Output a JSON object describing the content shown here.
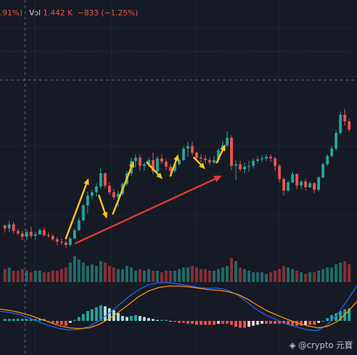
{
  "header": {
    "change_pct": ".91%)",
    "vol_label": "Vol",
    "vol_value": "1.442 K",
    "vol_change": "−833 (−1.25%)"
  },
  "watermark": "@crypto 元寶",
  "colors": {
    "up": "#26a69a",
    "down": "#ef5350",
    "arrow_yellow": "#f5c518",
    "arrow_red": "#e53935",
    "macd_line": "#2962ff",
    "signal_line": "#ff9800",
    "bg": "#161a25"
  },
  "chart_data": [
    {
      "type": "candlestick",
      "title": "",
      "ohlc": [
        [
          96,
          96,
          95.1,
          95.6
        ],
        [
          95.6,
          96.5,
          95.2,
          96.1
        ],
        [
          96.1,
          96.4,
          95,
          95.3
        ],
        [
          95.3,
          95.6,
          94.8,
          95
        ],
        [
          95,
          95.3,
          94.2,
          94.6
        ],
        [
          94.6,
          95.5,
          94.3,
          95.2
        ],
        [
          95.2,
          95.8,
          94.4,
          94.7
        ],
        [
          94.7,
          95.2,
          94.2,
          94.9
        ],
        [
          94.9,
          95.6,
          94.8,
          95.4
        ],
        [
          95.4,
          95.7,
          94.6,
          94.8
        ],
        [
          94.8,
          95.1,
          94.5,
          94.7
        ],
        [
          94.7,
          94.9,
          94.1,
          94.3
        ],
        [
          94.3,
          94.6,
          93.6,
          94
        ],
        [
          94,
          94.4,
          93.6,
          93.9
        ],
        [
          93.9,
          94.1,
          93.2,
          93.6
        ],
        [
          93.6,
          94.6,
          93.4,
          94.4
        ],
        [
          94.4,
          95.6,
          94.3,
          95.4
        ],
        [
          95.4,
          96.9,
          95.3,
          96.6
        ],
        [
          96.6,
          98.6,
          96.5,
          98.4
        ],
        [
          98.4,
          100.1,
          97.4,
          99.6
        ],
        [
          99.6,
          100.3,
          99.2,
          100
        ],
        [
          100,
          101.1,
          99.5,
          100.7
        ],
        [
          100.7,
          102.9,
          100.4,
          102.3
        ],
        [
          102.3,
          102.4,
          100.5,
          100.8
        ],
        [
          100.8,
          101.2,
          99.7,
          100
        ],
        [
          100,
          100.4,
          99.1,
          99.4
        ],
        [
          99.4,
          100.2,
          98.2,
          99.8
        ],
        [
          99.8,
          101.2,
          99.6,
          101
        ],
        [
          101,
          102.6,
          100.8,
          102.3
        ],
        [
          102.3,
          104.2,
          102,
          103.8
        ],
        [
          103.8,
          104.6,
          103,
          104.2
        ],
        [
          104.2,
          104.6,
          102.6,
          103.2
        ],
        [
          103.2,
          103.6,
          102.6,
          103.4
        ],
        [
          103.4,
          104.2,
          103.1,
          103.9
        ],
        [
          103.9,
          104.8,
          102.2,
          102.5
        ],
        [
          102.5,
          104.4,
          102.3,
          104.1
        ],
        [
          104.1,
          104.6,
          103.4,
          103.7
        ],
        [
          103.7,
          104,
          102.7,
          103.1
        ],
        [
          103.1,
          103.4,
          102.3,
          102.6
        ],
        [
          102.6,
          103.6,
          102.4,
          103.4
        ],
        [
          103.4,
          104.1,
          103.2,
          103.9
        ],
        [
          103.9,
          105.6,
          103.8,
          105.3
        ],
        [
          105.3,
          106.1,
          104.3,
          105.6
        ],
        [
          105.6,
          106.1,
          104.5,
          104.8
        ],
        [
          104.8,
          104.9,
          103.8,
          104.2
        ],
        [
          104.2,
          104.6,
          103.6,
          104.1
        ],
        [
          104.1,
          104.5,
          103.5,
          103.9
        ],
        [
          103.9,
          104.2,
          103.3,
          103.6
        ],
        [
          103.6,
          104.4,
          103.4,
          103.9
        ],
        [
          103.9,
          105.3,
          103.6,
          105.1
        ],
        [
          105.1,
          106.2,
          104.9,
          105.7
        ],
        [
          105.7,
          107.4,
          105.5,
          106.6
        ],
        [
          106.6,
          106.9,
          102.7,
          103.2
        ],
        [
          103.2,
          103.9,
          101.5,
          103.4
        ],
        [
          103.4,
          103.8,
          102.5,
          102.8
        ],
        [
          102.8,
          103.6,
          102.3,
          103.1
        ],
        [
          103.1,
          103.8,
          102.5,
          103.2
        ],
        [
          103.2,
          104.1,
          102.9,
          103.8
        ],
        [
          103.8,
          104.4,
          103.5,
          104
        ],
        [
          104,
          104.5,
          103.7,
          104.1
        ],
        [
          104.1,
          104.6,
          103.8,
          104.3
        ],
        [
          104.3,
          104.6,
          103.7,
          104.1
        ],
        [
          104.1,
          104.3,
          102.6,
          103.2
        ],
        [
          103.2,
          103.4,
          101.2,
          101.6
        ],
        [
          101.6,
          101.8,
          99.6,
          100.2
        ],
        [
          100.2,
          101.4,
          100,
          101.2
        ],
        [
          101.2,
          102.5,
          101.1,
          102.2
        ],
        [
          102.2,
          102.3,
          100.4,
          100.8
        ],
        [
          100.8,
          101.5,
          100.4,
          101.3
        ],
        [
          101.3,
          101.6,
          100.2,
          100.6
        ],
        [
          100.6,
          101.3,
          100.5,
          101.1
        ],
        [
          101.1,
          101.2,
          99.9,
          100.3
        ],
        [
          100.3,
          102,
          100.1,
          101.8
        ],
        [
          101.8,
          103.6,
          101.7,
          103.4
        ],
        [
          103.4,
          104.6,
          103.2,
          104.4
        ],
        [
          104.4,
          105.6,
          104.2,
          105.3
        ],
        [
          105.3,
          107.5,
          105,
          107.2
        ],
        [
          107.2,
          109.8,
          107,
          109.4
        ],
        [
          109.4,
          110.1,
          108.1,
          108.6
        ],
        [
          108.6,
          108.9,
          107.3,
          107.6
        ]
      ],
      "volume": [
        8,
        9,
        7,
        7,
        8,
        7,
        6,
        7,
        7,
        6,
        6,
        7,
        7,
        8,
        9,
        12,
        16,
        14,
        12,
        10,
        11,
        10,
        13,
        12,
        10,
        9,
        8,
        8,
        10,
        9,
        7,
        8,
        7,
        8,
        7,
        7,
        6,
        7,
        7,
        7,
        8,
        9,
        9,
        10,
        9,
        8,
        8,
        7,
        7,
        8,
        9,
        10,
        15,
        13,
        9,
        8,
        7,
        6,
        6,
        6,
        5,
        6,
        7,
        8,
        10,
        9,
        8,
        7,
        6,
        5,
        6,
        6,
        7,
        8,
        9,
        9,
        11,
        12,
        13,
        11
      ],
      "macd_histogram": [
        0.2,
        0.2,
        0.2,
        0.2,
        0.2,
        0.2,
        0.2,
        0.2,
        0.2,
        0.2,
        -0.1,
        -0.2,
        -0.3,
        -0.4,
        -0.5,
        -0.2,
        0.1,
        0.4,
        0.7,
        1,
        1.2,
        1.4,
        1.6,
        1.5,
        1.3,
        1.1,
        0.8,
        0.5,
        0.4,
        0.5,
        0.6,
        0.5,
        0.4,
        0.3,
        0.2,
        0.1,
        0.1,
        0.1,
        0,
        -0.1,
        -0.2,
        -0.2,
        -0.3,
        -0.3,
        -0.4,
        -0.4,
        -0.4,
        -0.4,
        -0.4,
        -0.3,
        -0.3,
        -0.3,
        -0.4,
        -0.6,
        -0.7,
        -0.7,
        -0.6,
        -0.5,
        -0.4,
        -0.3,
        -0.3,
        -0.3,
        -0.3,
        -0.3,
        -0.3,
        -0.4,
        -0.5,
        -0.5,
        -0.5,
        -0.4,
        -0.4,
        -0.4,
        -0.2,
        0,
        0.3,
        0.6,
        0.8,
        1,
        1.2,
        1.3
      ],
      "macd_line": [
        0.5,
        0.3,
        0,
        -0.5,
        -1.1,
        -1.6,
        -2,
        -2.2,
        -2.1,
        -1.7,
        -0.9,
        0.2,
        1.4,
        2.6,
        3.6,
        4.3,
        4.6,
        4.6,
        4.4,
        4.2,
        3.9,
        3.8,
        3.8,
        3.5,
        2.8,
        1.7,
        0.6,
        -0.2,
        -0.8,
        -1.4,
        -1.8,
        -2.2,
        -2.3,
        -1.5,
        0,
        2,
        4.2
      ],
      "signal_line": [
        0.8,
        0.6,
        0.3,
        -0.1,
        -0.6,
        -1.1,
        -1.6,
        -1.9,
        -2,
        -1.9,
        -1.4,
        -0.6,
        0.4,
        1.5,
        2.6,
        3.4,
        3.9,
        4.1,
        4.1,
        4,
        3.8,
        3.6,
        3.5,
        3.3,
        2.9,
        2.2,
        1.3,
        0.5,
        -0.1,
        -0.7,
        -1.2,
        -1.6,
        -1.9,
        -1.7,
        -1,
        0.3,
        1.9
      ],
      "arrows": [
        {
          "color": "yellow",
          "from": [
            14,
            94.4
          ],
          "to": [
            19.2,
            101.7
          ]
        },
        {
          "color": "yellow",
          "from": [
            21.6,
            99.6
          ],
          "to": [
            23.4,
            96.8
          ]
        },
        {
          "color": "yellow",
          "from": [
            24.8,
            97.4
          ],
          "to": [
            29.6,
            103.8
          ]
        },
        {
          "color": "yellow",
          "from": [
            32.6,
            103.6
          ],
          "to": [
            36.2,
            101.6
          ]
        },
        {
          "color": "yellow",
          "from": [
            38,
            102
          ],
          "to": [
            39.8,
            104.6
          ]
        },
        {
          "color": "yellow",
          "from": [
            43.4,
            104.2
          ],
          "to": [
            46,
            102.8
          ]
        },
        {
          "color": "yellow",
          "from": [
            48.6,
            103.6
          ],
          "to": [
            50.6,
            105.8
          ]
        },
        {
          "color": "red",
          "from": [
            16.2,
            93.8
          ],
          "to": [
            49.8,
            102
          ]
        }
      ]
    }
  ]
}
